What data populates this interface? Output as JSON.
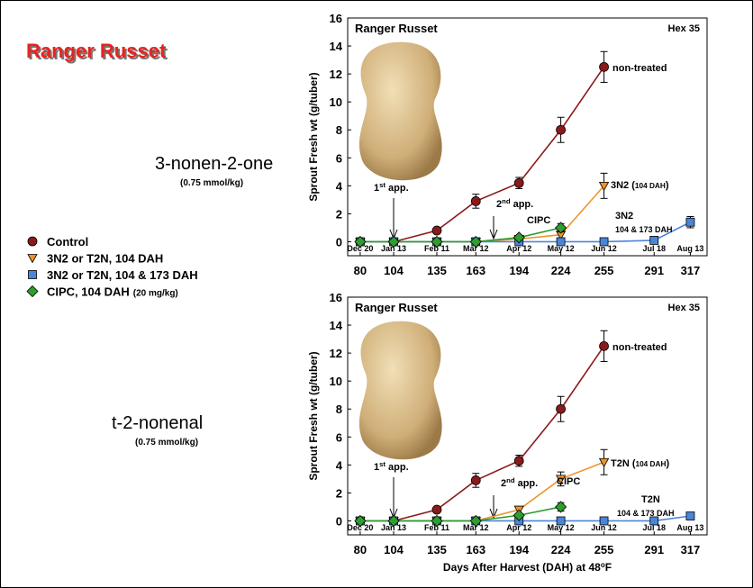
{
  "title": "Ranger Russet",
  "compounds": [
    {
      "name": "3-nonen-2-one",
      "dose": "(0.75 mmol/kg)"
    },
    {
      "name": "t-2-nonenal",
      "dose": "(0.75 mmol/kg)"
    }
  ],
  "legend": [
    {
      "name": "Control"
    },
    {
      "name": "3N2 or T2N, 104 DAH"
    },
    {
      "name": "3N2 or T2N, 104 & 173 DAH"
    },
    {
      "name": "CIPC, 104 DAH",
      "note": "(20 mg/kg)"
    }
  ],
  "chart_data": [
    {
      "type": "line",
      "title": "Ranger Russet",
      "label": "Hex 35",
      "ylabel": "Sprout Fresh wt (g/tuber)",
      "x": [
        80,
        104,
        135,
        163,
        194,
        224,
        255,
        291,
        317
      ],
      "date_labels": [
        "Dec 20",
        "Jan 13",
        "Feb 11",
        "Mar 12",
        "Apr 12",
        "May 12",
        "Jun 12",
        "Jul 18",
        "Aug 13"
      ],
      "xlim": [
        71,
        329
      ],
      "xticks": [
        80,
        104,
        135,
        163,
        194,
        224,
        255,
        291,
        317
      ],
      "ylim": [
        -1,
        16
      ],
      "yticks": [
        0,
        2,
        4,
        6,
        8,
        10,
        12,
        14,
        16
      ],
      "series": [
        {
          "marker": "circle",
          "color": "#8b1a1a",
          "values": [
            0,
            0,
            0.8,
            2.9,
            4.2,
            8.0,
            12.5,
            null,
            null
          ],
          "errors": [
            null,
            null,
            null,
            0.5,
            0.4,
            0.9,
            1.1,
            null,
            null
          ]
        },
        {
          "marker": "triangle",
          "color": "#f0932b",
          "values": [
            0,
            0,
            0,
            0,
            0.2,
            0.5,
            4.0,
            null,
            null
          ],
          "errors": [
            null,
            null,
            null,
            null,
            null,
            null,
            0.9,
            null,
            null
          ]
        },
        {
          "marker": "square",
          "color": "#4a86d8",
          "values": [
            0,
            0,
            0,
            0,
            0,
            0,
            0,
            0.1,
            1.4
          ],
          "errors": [
            null,
            null,
            null,
            null,
            null,
            null,
            null,
            null,
            0.4
          ]
        },
        {
          "marker": "diamond",
          "color": "#2e9e2e",
          "values": [
            0,
            0,
            0,
            0,
            0.3,
            1.0,
            null,
            null,
            null
          ],
          "errors": [
            null,
            null,
            null,
            null,
            null,
            0.3,
            null,
            null,
            null
          ]
        }
      ],
      "annotations": [
        [
          "non-treated"
        ],
        [
          "3N2 (",
          "104 DAH",
          ")"
        ],
        [
          "3N2"
        ],
        [
          "104 & 173 DAH"
        ],
        [
          "CIPC"
        ],
        [
          "1",
          "st",
          " app."
        ],
        [
          "2",
          "nd",
          " app."
        ]
      ]
    },
    {
      "type": "line",
      "title": "Ranger Russet",
      "label": "Hex 35",
      "ylabel": "Sprout Fresh wt (g/tuber)",
      "xlabel": [
        "Days After Harvest (DAH) at 48",
        "o",
        "F"
      ],
      "x": [
        80,
        104,
        135,
        163,
        194,
        224,
        255,
        291,
        317
      ],
      "date_labels": [
        "Dec 20",
        "Jan 13",
        "Feb 11",
        "Mar 12",
        "Apr 12",
        "May 12",
        "Jun 12",
        "Jul 18",
        "Aug 13"
      ],
      "xlim": [
        71,
        329
      ],
      "xticks": [
        80,
        104,
        135,
        163,
        194,
        224,
        255,
        291,
        317
      ],
      "ylim": [
        -1,
        16
      ],
      "yticks": [
        0,
        2,
        4,
        6,
        8,
        10,
        12,
        14,
        16
      ],
      "series": [
        {
          "marker": "circle",
          "color": "#8b1a1a",
          "values": [
            0,
            0,
            0.8,
            2.9,
            4.3,
            8.0,
            12.5,
            null,
            null
          ],
          "errors": [
            null,
            null,
            null,
            0.5,
            0.4,
            0.9,
            1.1,
            null,
            null
          ]
        },
        {
          "marker": "triangle",
          "color": "#f0932b",
          "values": [
            0,
            0,
            0,
            0,
            0.8,
            3.0,
            4.2,
            null,
            null
          ],
          "errors": [
            null,
            null,
            null,
            null,
            null,
            0.5,
            0.9,
            null,
            null
          ]
        },
        {
          "marker": "square",
          "color": "#4a86d8",
          "values": [
            0,
            0,
            0,
            0,
            0,
            0,
            0,
            0,
            0.35
          ],
          "errors": [
            null,
            null,
            null,
            null,
            null,
            null,
            null,
            null,
            null
          ]
        },
        {
          "marker": "diamond",
          "color": "#2e9e2e",
          "values": [
            0,
            0,
            0,
            0,
            0.4,
            1.0,
            null,
            null,
            null
          ],
          "errors": [
            null,
            null,
            null,
            null,
            null,
            0.3,
            null,
            null,
            null
          ]
        }
      ],
      "annotations": [
        [
          "non-treated"
        ],
        [
          "T2N (",
          "104 DAH",
          ")"
        ],
        [
          "T2N"
        ],
        [
          "104 & 173 DAH"
        ],
        [
          "CIPC"
        ],
        [
          "1",
          "st",
          " app."
        ],
        [
          "2",
          "nd",
          " app."
        ]
      ]
    }
  ]
}
